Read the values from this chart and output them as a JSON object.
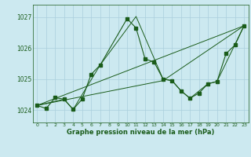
{
  "background_color": "#cce9f0",
  "grid_color": "#aacfdc",
  "line_color": "#1a5c1a",
  "ylim": [
    1023.6,
    1027.4
  ],
  "xlim": [
    -0.5,
    23.5
  ],
  "yticks": [
    1024,
    1025,
    1026,
    1027
  ],
  "xticks": [
    0,
    1,
    2,
    3,
    4,
    5,
    6,
    7,
    8,
    9,
    10,
    11,
    12,
    13,
    14,
    15,
    16,
    17,
    18,
    19,
    20,
    21,
    22,
    23
  ],
  "xlabel": "Graphe pression niveau de la mer (hPa)",
  "series": [
    {
      "x": [
        0,
        1,
        2,
        3,
        4,
        5,
        6,
        7,
        10,
        11,
        12,
        13,
        14,
        15,
        16,
        17,
        18,
        19,
        20,
        21,
        22,
        23
      ],
      "y": [
        1024.15,
        1024.05,
        1024.4,
        1024.35,
        1024.02,
        1024.35,
        1025.15,
        1025.45,
        1026.95,
        1026.65,
        1025.65,
        1025.55,
        1025.0,
        1024.95,
        1024.62,
        1024.38,
        1024.55,
        1024.85,
        1024.92,
        1025.82,
        1026.1,
        1026.72
      ],
      "has_markers": true
    },
    {
      "x": [
        0,
        3,
        4,
        7,
        11,
        14,
        15,
        16,
        17,
        19,
        20,
        23
      ],
      "y": [
        1024.15,
        1024.35,
        1024.02,
        1025.45,
        1027.02,
        1025.0,
        1024.95,
        1024.62,
        1024.38,
        1024.85,
        1024.92,
        1026.72
      ],
      "has_markers": false
    },
    {
      "x": [
        0,
        23
      ],
      "y": [
        1024.15,
        1026.72
      ],
      "has_markers": false
    },
    {
      "x": [
        0,
        14,
        23
      ],
      "y": [
        1024.15,
        1024.95,
        1026.72
      ],
      "has_markers": false
    }
  ]
}
